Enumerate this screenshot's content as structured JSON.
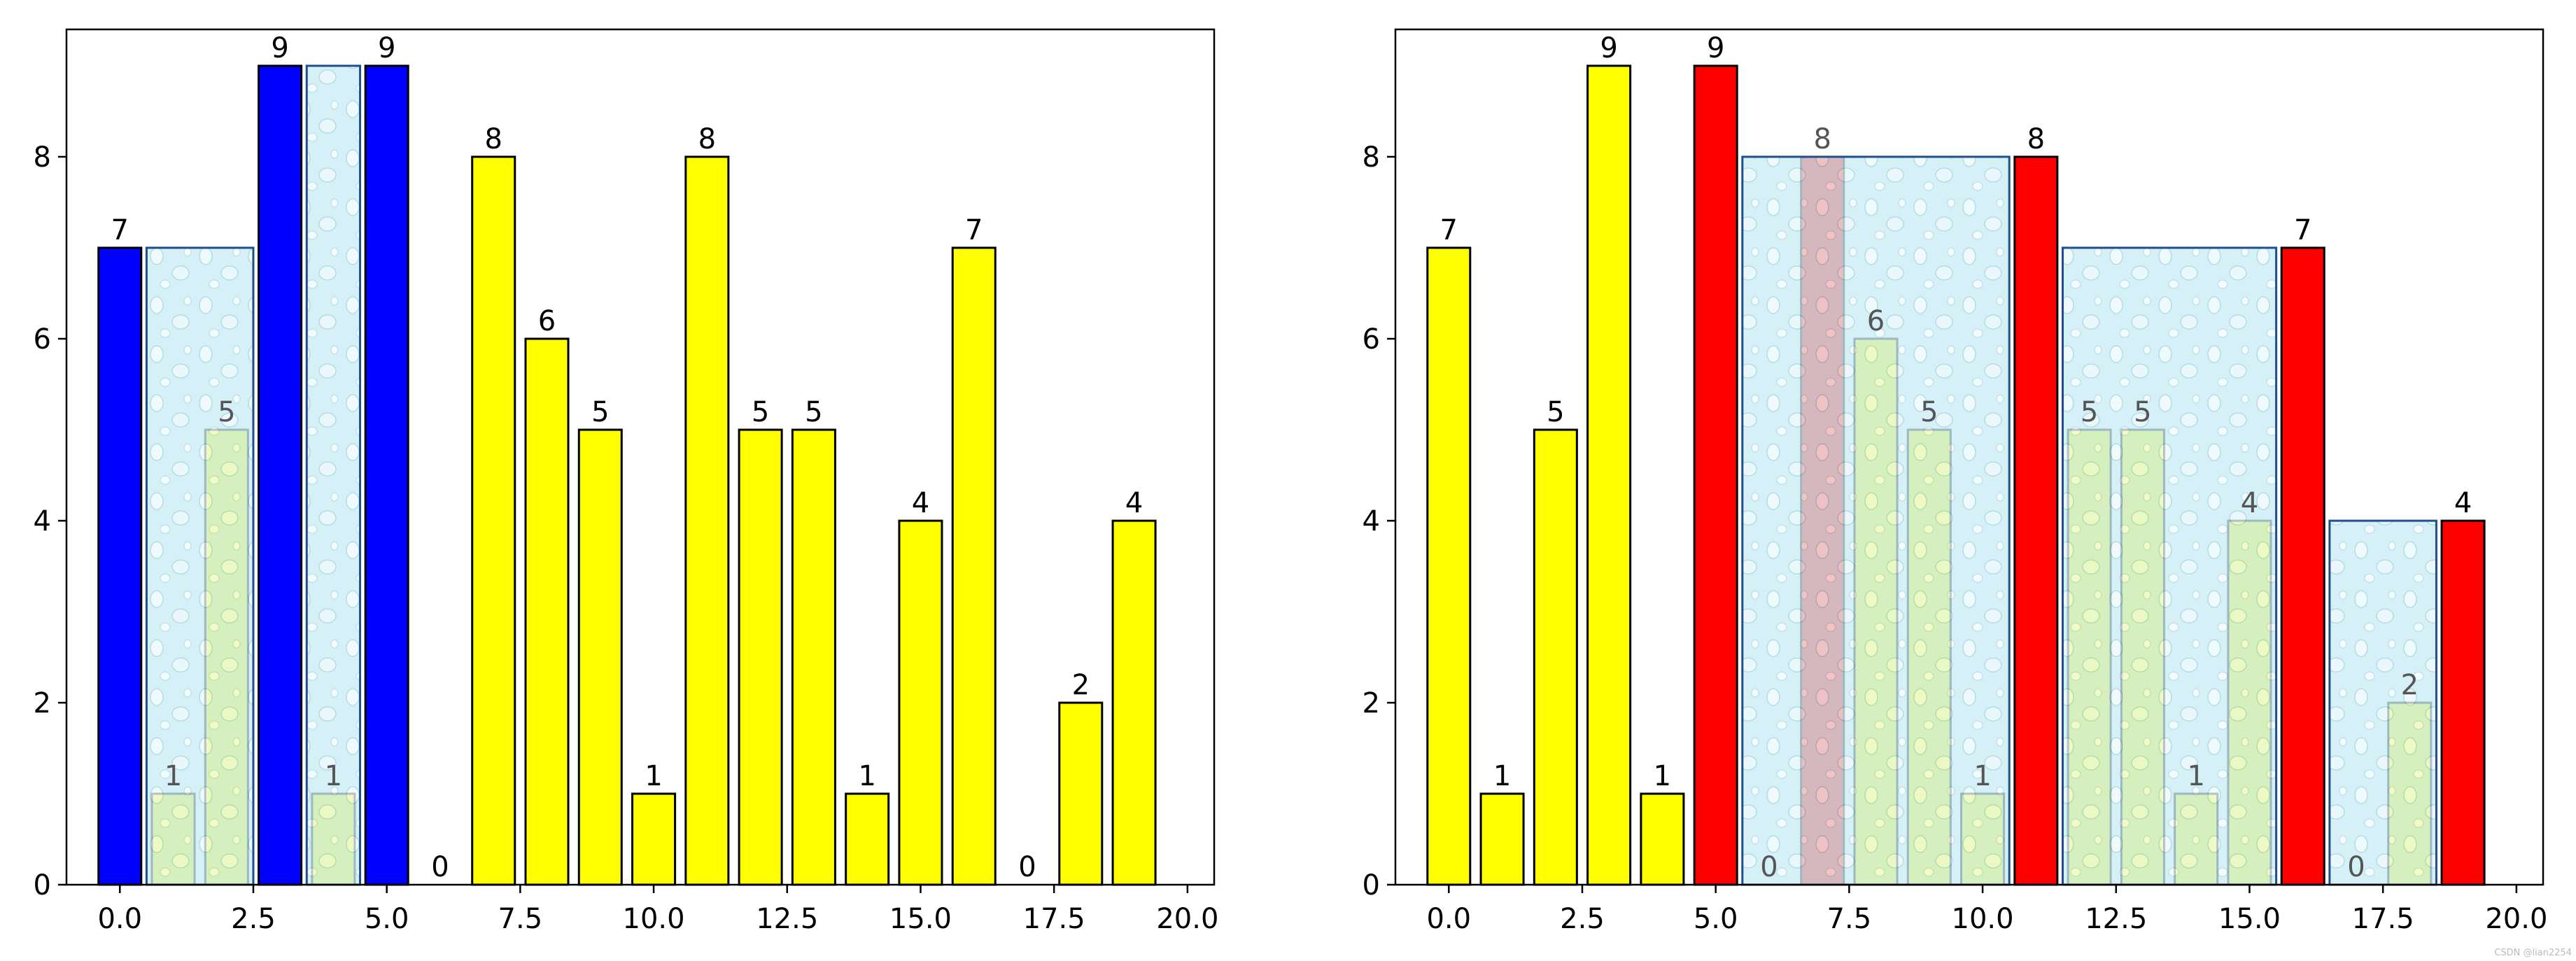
{
  "watermark": "CSDN @lian2254",
  "colors": {
    "bar_default": "#ffff00",
    "bar_highlight_left": "#0000ff",
    "bar_highlight_right": "#ff0000",
    "bar_edge": "#000000",
    "water_fill": "#c6eaf2",
    "water_edge": "#1f4e8c",
    "label_on_water": "#555555"
  },
  "chart_data": [
    {
      "type": "bar",
      "x": [
        0,
        1,
        2,
        3,
        4,
        5,
        6,
        7,
        8,
        9,
        10,
        11,
        12,
        13,
        14,
        15,
        16,
        17,
        18,
        19
      ],
      "values": [
        7,
        1,
        5,
        9,
        1,
        9,
        0,
        8,
        6,
        5,
        1,
        8,
        5,
        5,
        1,
        4,
        7,
        0,
        2,
        4
      ],
      "bar_colors": [
        "blue",
        "yellow",
        "yellow",
        "blue",
        "yellow",
        "blue",
        "yellow",
        "yellow",
        "yellow",
        "yellow",
        "yellow",
        "yellow",
        "yellow",
        "yellow",
        "yellow",
        "yellow",
        "yellow",
        "yellow",
        "yellow",
        "yellow"
      ],
      "water_regions": [
        {
          "x_start": 0.5,
          "x_end": 2.5,
          "level": 7
        },
        {
          "x_start": 3.5,
          "x_end": 4.5,
          "level": 9
        }
      ],
      "xlim": [
        -1,
        20.5
      ],
      "ylim": [
        0,
        9.4
      ],
      "xticks": [
        0,
        2.5,
        5,
        7.5,
        10,
        12.5,
        15,
        17.5,
        20
      ],
      "xtick_labels": [
        "0.0",
        "2.5",
        "5.0",
        "7.5",
        "10.0",
        "12.5",
        "15.0",
        "17.5",
        "20.0"
      ],
      "yticks": [
        0,
        2,
        4,
        6,
        8
      ],
      "ytick_labels": [
        "0",
        "2",
        "4",
        "6",
        "8"
      ],
      "grid": false
    },
    {
      "type": "bar",
      "x": [
        0,
        1,
        2,
        3,
        4,
        5,
        6,
        7,
        8,
        9,
        10,
        11,
        12,
        13,
        14,
        15,
        16,
        17,
        18,
        19
      ],
      "values": [
        7,
        1,
        5,
        9,
        1,
        9,
        0,
        8,
        6,
        5,
        1,
        8,
        5,
        5,
        1,
        4,
        7,
        0,
        2,
        4
      ],
      "bar_colors": [
        "yellow",
        "yellow",
        "yellow",
        "yellow",
        "yellow",
        "red",
        "yellow",
        "red",
        "yellow",
        "yellow",
        "yellow",
        "red",
        "yellow",
        "yellow",
        "yellow",
        "yellow",
        "red",
        "yellow",
        "yellow",
        "red"
      ],
      "water_regions": [
        {
          "x_start": 5.5,
          "x_end": 10.5,
          "level": 8
        },
        {
          "x_start": 11.5,
          "x_end": 15.5,
          "level": 7
        },
        {
          "x_start": 16.5,
          "x_end": 18.5,
          "level": 4
        }
      ],
      "xlim": [
        -1,
        20.5
      ],
      "ylim": [
        0,
        9.4
      ],
      "xticks": [
        0,
        2.5,
        5,
        7.5,
        10,
        12.5,
        15,
        17.5,
        20
      ],
      "xtick_labels": [
        "0.0",
        "2.5",
        "5.0",
        "7.5",
        "10.0",
        "12.5",
        "15.0",
        "17.5",
        "20.0"
      ],
      "yticks": [
        0,
        2,
        4,
        6,
        8
      ],
      "ytick_labels": [
        "0",
        "2",
        "4",
        "6",
        "8"
      ],
      "grid": false
    }
  ]
}
